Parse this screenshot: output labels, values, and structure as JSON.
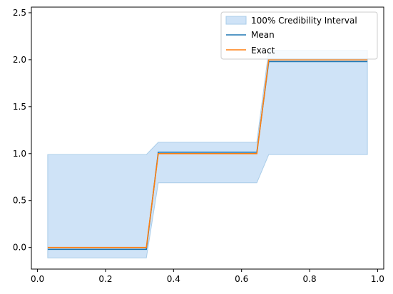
{
  "chart_data": {
    "type": "area",
    "title": "",
    "xlabel": "",
    "ylabel": "",
    "xlim": [
      -0.018,
      1.018
    ],
    "ylim": [
      -0.23,
      2.56
    ],
    "grid": false,
    "legend_position": "top-right",
    "x_ticks": [
      0.0,
      0.2,
      0.4,
      0.6,
      0.8,
      1.0
    ],
    "x_tick_labels": [
      "0.0",
      "0.2",
      "0.4",
      "0.6",
      "0.8",
      "1.0"
    ],
    "y_ticks": [
      0.0,
      0.5,
      1.0,
      1.5,
      2.0,
      2.5
    ],
    "y_tick_labels": [
      "0.0",
      "0.5",
      "1.0",
      "1.5",
      "2.0",
      "2.5"
    ],
    "interval": {
      "name": "100% Credibility Interval",
      "color": "#cfe3f7",
      "edge_color": "#aacde9",
      "x": [
        0.03,
        0.32,
        0.355,
        0.645,
        0.68,
        0.97
      ],
      "lower": [
        -0.11,
        -0.11,
        0.69,
        0.69,
        0.99,
        0.99
      ],
      "upper": [
        0.99,
        0.99,
        1.12,
        1.12,
        2.1,
        2.1
      ]
    },
    "series": [
      {
        "name": "Mean",
        "color": "#1f77b4",
        "x": [
          0.03,
          0.32,
          0.355,
          0.645,
          0.68,
          0.97
        ],
        "values": [
          -0.02,
          -0.02,
          1.015,
          1.015,
          1.98,
          1.98
        ]
      },
      {
        "name": "Exact",
        "color": "#ff7f0e",
        "x": [
          0.03,
          0.32,
          0.355,
          0.645,
          0.68,
          0.97
        ],
        "values": [
          0.0,
          0.0,
          1.0,
          1.0,
          2.0,
          2.0
        ]
      }
    ]
  }
}
